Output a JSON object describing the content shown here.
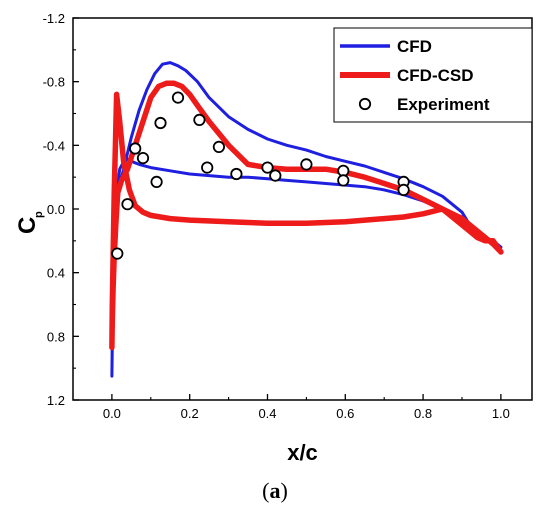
{
  "caption": {
    "open": "(",
    "letter": "a",
    "close": ")"
  },
  "colors": {
    "cfd": "#1f1fe0",
    "cfd_csd": "#ee1b1b",
    "marker_edge": "#000000",
    "marker_fill": "#ffffff",
    "axis": "#000000"
  },
  "chart_data": {
    "type": "line",
    "xlabel": "x/c",
    "ylabel": "C",
    "ylabel_sub": "p",
    "xlim": [
      -0.1,
      1.08
    ],
    "ylim": [
      1.2,
      -1.2
    ],
    "y_inverted": true,
    "xticks": [
      0.0,
      0.2,
      0.4,
      0.6,
      0.8,
      1.0
    ],
    "xtick_labels": [
      "0.0",
      "0.2",
      "0.4",
      "0.6",
      "0.8",
      "1.0"
    ],
    "yticks": [
      -1.2,
      -0.8,
      -0.4,
      0.0,
      0.4,
      0.8,
      1.2
    ],
    "ytick_labels": [
      "-1.2",
      "-0.8",
      "-0.4",
      "0.0",
      "0.4",
      "0.8",
      "1.2"
    ],
    "grid": false,
    "legend_position": "top-right",
    "series": [
      {
        "name": "CFD",
        "kind": "line",
        "color": "#1f1fe0",
        "x": [
          1.0,
          0.98,
          0.96,
          0.93,
          0.9,
          0.85,
          0.8,
          0.75,
          0.7,
          0.65,
          0.6,
          0.55,
          0.5,
          0.45,
          0.4,
          0.35,
          0.3,
          0.25,
          0.22,
          0.19,
          0.17,
          0.15,
          0.13,
          0.11,
          0.09,
          0.07,
          0.05,
          0.035,
          0.02,
          0.012,
          0.007,
          0.004,
          0.002,
          0.001,
          0.0,
          0.001,
          0.003,
          0.006,
          0.01,
          0.02,
          0.035,
          0.05,
          0.07,
          0.1,
          0.15,
          0.2,
          0.25,
          0.3,
          0.35,
          0.4,
          0.45,
          0.5,
          0.55,
          0.6,
          0.65,
          0.7,
          0.75,
          0.8,
          0.85,
          0.9,
          0.93,
          0.96,
          0.98,
          1.0
        ],
        "y": [
          0.24,
          0.2,
          0.18,
          0.14,
          0.02,
          -0.08,
          -0.14,
          -0.19,
          -0.23,
          -0.27,
          -0.3,
          -0.33,
          -0.37,
          -0.4,
          -0.44,
          -0.5,
          -0.58,
          -0.7,
          -0.8,
          -0.87,
          -0.9,
          -0.92,
          -0.91,
          -0.85,
          -0.75,
          -0.62,
          -0.45,
          -0.3,
          -0.15,
          0.05,
          0.25,
          0.45,
          0.65,
          0.85,
          1.05,
          0.8,
          0.5,
          0.2,
          -0.05,
          -0.25,
          -0.32,
          -0.3,
          -0.28,
          -0.26,
          -0.24,
          -0.22,
          -0.21,
          -0.2,
          -0.2,
          -0.19,
          -0.18,
          -0.17,
          -0.16,
          -0.15,
          -0.14,
          -0.12,
          -0.09,
          -0.05,
          0.0,
          0.05,
          0.12,
          0.19,
          0.22,
          0.24
        ]
      },
      {
        "name": "CFD-CSD",
        "kind": "line",
        "color": "#ee1b1b",
        "x": [
          1.0,
          0.98,
          0.96,
          0.94,
          0.92,
          0.9,
          0.85,
          0.8,
          0.75,
          0.7,
          0.65,
          0.6,
          0.55,
          0.5,
          0.45,
          0.4,
          0.35,
          0.3,
          0.25,
          0.22,
          0.2,
          0.18,
          0.16,
          0.14,
          0.12,
          0.1,
          0.08,
          0.06,
          0.04,
          0.025,
          0.015,
          0.01,
          0.006,
          0.003,
          0.001,
          0.0,
          0.001,
          0.003,
          0.006,
          0.009,
          0.012,
          0.02,
          0.03,
          0.045,
          0.06,
          0.08,
          0.1,
          0.15,
          0.2,
          0.3,
          0.4,
          0.5,
          0.6,
          0.7,
          0.75,
          0.8,
          0.85,
          0.9,
          0.93,
          0.96,
          0.98,
          1.0
        ],
        "y": [
          0.27,
          0.2,
          0.2,
          0.18,
          0.14,
          0.1,
          0.0,
          -0.06,
          -0.12,
          -0.16,
          -0.2,
          -0.23,
          -0.25,
          -0.25,
          -0.25,
          -0.26,
          -0.28,
          -0.4,
          -0.55,
          -0.65,
          -0.72,
          -0.77,
          -0.79,
          -0.79,
          -0.77,
          -0.7,
          -0.55,
          -0.4,
          -0.25,
          -0.18,
          -0.1,
          0.1,
          0.3,
          0.5,
          0.7,
          0.87,
          0.6,
          0.3,
          -0.1,
          -0.4,
          -0.72,
          -0.55,
          -0.3,
          -0.12,
          -0.02,
          0.02,
          0.04,
          0.06,
          0.07,
          0.08,
          0.09,
          0.09,
          0.08,
          0.06,
          0.05,
          0.03,
          0.0,
          0.06,
          0.12,
          0.18,
          0.22,
          0.27
        ]
      },
      {
        "name": "Experiment",
        "kind": "scatter",
        "x": [
          0.014,
          0.04,
          0.06,
          0.08,
          0.115,
          0.125,
          0.17,
          0.225,
          0.245,
          0.275,
          0.32,
          0.4,
          0.42,
          0.5,
          0.595,
          0.595,
          0.75,
          0.75
        ],
        "y": [
          0.28,
          -0.03,
          -0.38,
          -0.32,
          -0.17,
          -0.54,
          -0.7,
          -0.56,
          -0.26,
          -0.39,
          -0.22,
          -0.26,
          -0.21,
          -0.28,
          -0.24,
          -0.18,
          -0.17,
          -0.12
        ]
      }
    ]
  }
}
